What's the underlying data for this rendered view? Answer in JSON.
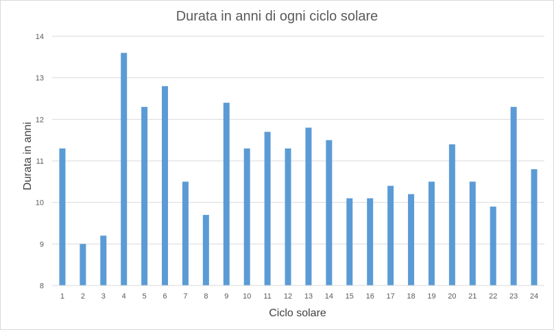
{
  "chart_data": {
    "type": "bar",
    "title": "Durata in anni di ogni ciclo solare",
    "xlabel": "Ciclo solare",
    "ylabel": "Durata in anni",
    "categories": [
      "1",
      "2",
      "3",
      "4",
      "5",
      "6",
      "7",
      "8",
      "9",
      "10",
      "11",
      "12",
      "13",
      "14",
      "15",
      "16",
      "17",
      "18",
      "19",
      "20",
      "21",
      "22",
      "23",
      "24"
    ],
    "values": [
      11.3,
      9.0,
      9.2,
      13.6,
      12.3,
      12.8,
      10.5,
      9.7,
      12.4,
      11.3,
      11.7,
      11.3,
      11.8,
      11.5,
      10.1,
      10.1,
      10.4,
      10.2,
      10.5,
      11.4,
      10.5,
      9.9,
      12.3,
      10.8
    ],
    "ylim": [
      8,
      14
    ],
    "yticks": [
      "8",
      "9",
      "10",
      "11",
      "12",
      "13",
      "14"
    ],
    "grid": true,
    "legend": "none",
    "colors": {
      "bar": "#5b9bd5"
    }
  }
}
